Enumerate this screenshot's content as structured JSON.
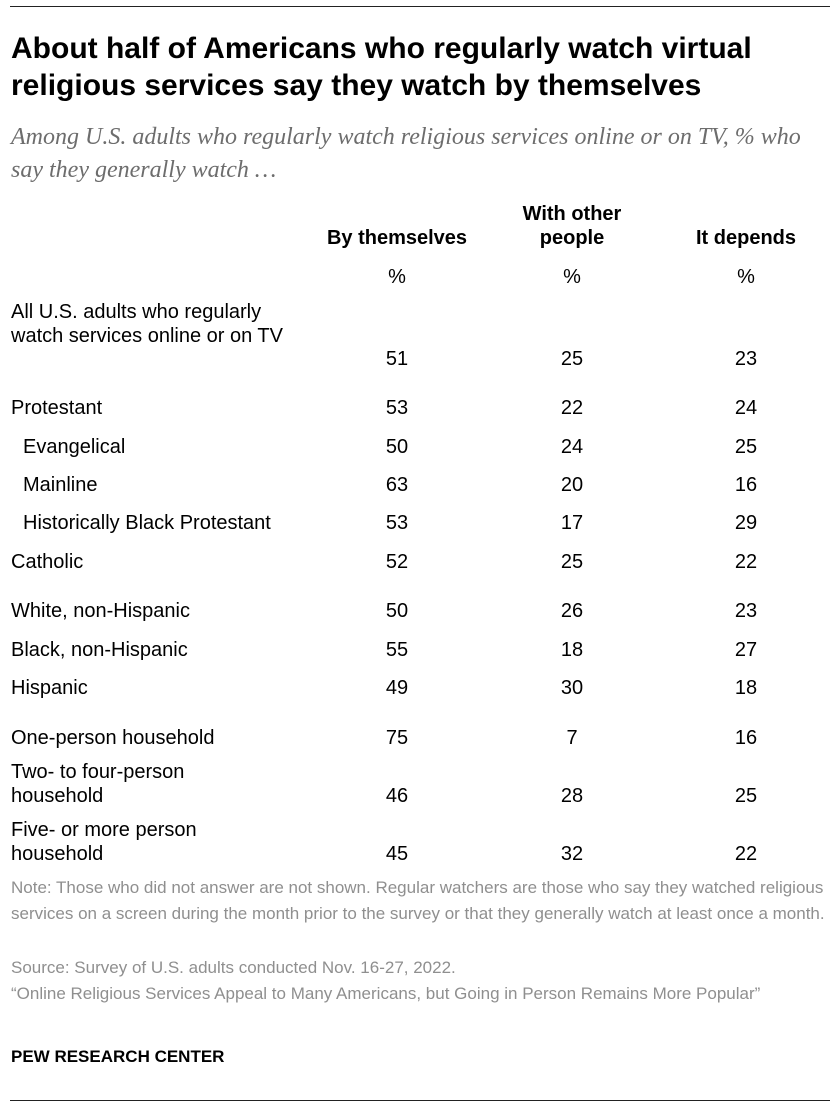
{
  "title": "About half of Americans who regularly watch virtual religious services say they watch by themselves",
  "subtitle": "Among U.S. adults who regularly watch religious services online or on TV, % who say they generally watch …",
  "chart_data": {
    "type": "table",
    "columns": [
      "By themselves",
      "With other people",
      "It depends"
    ],
    "units": [
      "%",
      "%",
      "%"
    ],
    "rows": [
      {
        "label": "All U.S. adults who regularly watch services online or on TV",
        "indent": false,
        "values": [
          51,
          25,
          23
        ]
      },
      {
        "label": "Protestant",
        "indent": false,
        "values": [
          53,
          22,
          24
        ]
      },
      {
        "label": "Evangelical",
        "indent": true,
        "values": [
          50,
          24,
          25
        ]
      },
      {
        "label": "Mainline",
        "indent": true,
        "values": [
          63,
          20,
          16
        ]
      },
      {
        "label": "Historically Black Protestant",
        "indent": true,
        "values": [
          53,
          17,
          29
        ]
      },
      {
        "label": "Catholic",
        "indent": false,
        "values": [
          52,
          25,
          22
        ]
      },
      {
        "label": "White, non-Hispanic",
        "indent": false,
        "values": [
          50,
          26,
          23
        ]
      },
      {
        "label": "Black, non-Hispanic",
        "indent": false,
        "values": [
          55,
          18,
          27
        ]
      },
      {
        "label": "Hispanic",
        "indent": false,
        "values": [
          49,
          30,
          18
        ]
      },
      {
        "label": "One-person household",
        "indent": false,
        "values": [
          75,
          7,
          16
        ]
      },
      {
        "label": "Two- to four-person household",
        "indent": false,
        "values": [
          46,
          28,
          25
        ]
      },
      {
        "label": "Five- or more person household",
        "indent": false,
        "values": [
          45,
          32,
          22
        ]
      }
    ]
  },
  "note": "Note: Those who did not answer are not shown. Regular watchers are those who say they watched religious services on a screen during the month prior to the survey or that they generally watch at least once a month.",
  "source": "Source: Survey of U.S. adults conducted Nov. 16-27, 2022.",
  "report": "“Online Religious Services Appeal to Many Americans, but Going in Person Remains More Popular”",
  "brand": "PEW RESEARCH CENTER"
}
